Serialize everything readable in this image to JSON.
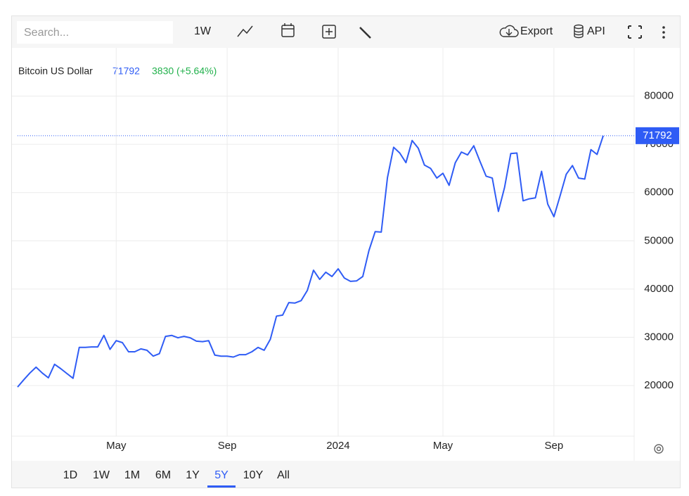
{
  "toolbar": {
    "search_placeholder": "Search...",
    "interval": "1W",
    "export": "Export",
    "api": "API"
  },
  "ranges": [
    "1D",
    "1W",
    "1M",
    "6M",
    "1Y",
    "5Y",
    "10Y",
    "All"
  ],
  "selected_range": 5,
  "chart_data": {
    "type": "line",
    "change": "3830 (+5.64%)",
    "categories": [
      null,
      null,
      null,
      null,
      null,
      null,
      null,
      null,
      null,
      null,
      null,
      null,
      null,
      null,
      null,
      null,
      "May",
      null,
      null,
      null,
      null,
      null,
      null,
      null,
      null,
      null,
      null,
      null,
      null,
      null,
      null,
      null,
      null,
      null,
      "Sep",
      null,
      null,
      null,
      null,
      null,
      null,
      null,
      null,
      null,
      null,
      null,
      null,
      null,
      null,
      null,
      null,
      null,
      "2024",
      null,
      null,
      null,
      null,
      null,
      null,
      null,
      null,
      null,
      null,
      null,
      null,
      null,
      null,
      null,
      null,
      "May",
      null,
      null,
      null,
      null,
      null,
      null,
      null,
      null,
      null,
      null,
      null,
      null,
      null,
      null,
      null,
      null,
      null,
      "Sep",
      null,
      null,
      null,
      null,
      null,
      null,
      null,
      null
    ],
    "series": [
      {
        "name": "Bitcoin US Dollar",
        "color": "#2f5cf5",
        "values": [
          19700,
          21200,
          22600,
          23800,
          22600,
          21600,
          24400,
          23500,
          22500,
          21500,
          27900,
          27900,
          28000,
          28000,
          30400,
          27500,
          29300,
          28900,
          27000,
          27000,
          27600,
          27300,
          26100,
          26600,
          30200,
          30400,
          29900,
          30200,
          29900,
          29200,
          29100,
          29300,
          26300,
          26100,
          26100,
          25900,
          26400,
          26400,
          27000,
          27900,
          27300,
          29600,
          34400,
          34600,
          37200,
          37100,
          37600,
          39700,
          43900,
          42000,
          43500,
          42600,
          44200,
          42300,
          41600,
          41700,
          42600,
          48000,
          51900,
          51800,
          63100,
          69400,
          68200,
          66200,
          70800,
          69200,
          65700,
          65000,
          63000,
          64000,
          61500,
          66200,
          68400,
          67800,
          69700,
          66500,
          63400,
          63000,
          56100,
          61100,
          68100,
          68200,
          58300,
          58700,
          58900,
          64400,
          57600,
          55000,
          59300,
          63800,
          65600,
          63000,
          62800,
          68900,
          67900,
          71792
        ]
      }
    ],
    "ylim": [
      9500,
      90000
    ],
    "yticks": [
      20000,
      30000,
      40000,
      50000,
      60000,
      70000,
      80000
    ],
    "grid": true,
    "change_color": "#22b14c"
  }
}
